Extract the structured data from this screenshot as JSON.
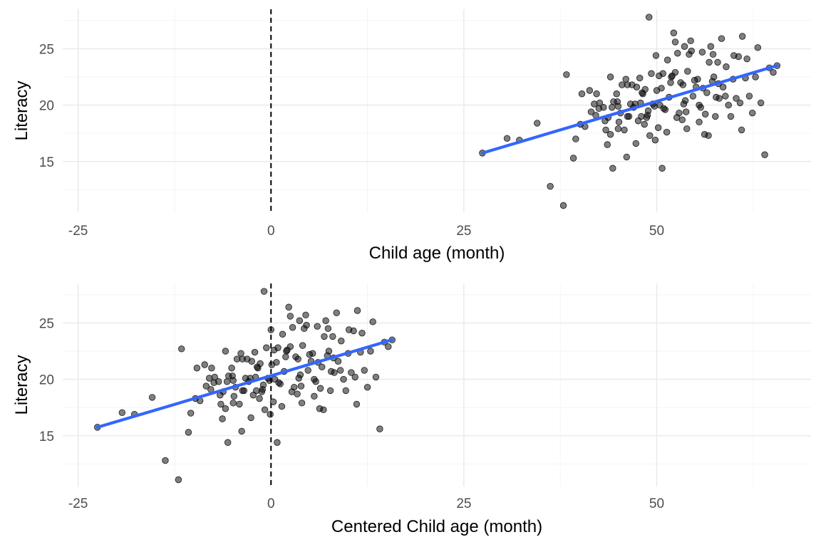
{
  "chart_data": [
    {
      "type": "scatter",
      "xlabel": "Child age (month)",
      "ylabel": "Literacy",
      "xlim": [
        -27,
        70
      ],
      "ylim": [
        10.5,
        28.5
      ],
      "xticks": [
        -25,
        0,
        25,
        50
      ],
      "yticks": [
        15,
        20,
        25
      ],
      "xtick_labels": [
        "-25",
        "0",
        "25",
        "50"
      ],
      "ytick_labels": [
        "15",
        "20",
        "25"
      ],
      "grid": true,
      "reference_line_x": 0,
      "point_color": "#000000",
      "fit_color": "#3366ff",
      "fit_line": {
        "x": [
          27.4,
          65.6
        ],
        "y": [
          15.75,
          23.5
        ]
      },
      "x": [
        27.4,
        30.6,
        32.2,
        34.5,
        36.2,
        37.9,
        38.3,
        39.2,
        39.5,
        40.1,
        40.3,
        40.7,
        41.3,
        41.5,
        41.9,
        42.1,
        42.2,
        42.5,
        42.6,
        43.1,
        43.3,
        43.4,
        43.6,
        43.7,
        44.0,
        44.0,
        44.2,
        44.3,
        44.4,
        44.8,
        45.0,
        45.0,
        45.1,
        45.3,
        45.5,
        45.8,
        46.0,
        46.1,
        46.2,
        46.2,
        46.6,
        46.8,
        47.0,
        47.2,
        47.3,
        47.6,
        47.8,
        47.9,
        48.0,
        48.1,
        48.4,
        48.5,
        48.7,
        48.8,
        48.9,
        49.1,
        49.3,
        49.5,
        49.7,
        49.8,
        49.9,
        50.0,
        50.3,
        50.4,
        50.6,
        50.7,
        50.8,
        50.9,
        51.1,
        51.3,
        51.4,
        51.6,
        51.8,
        52.0,
        52.2,
        52.4,
        52.4,
        52.6,
        52.7,
        52.9,
        53.1,
        53.3,
        53.4,
        53.5,
        53.6,
        53.8,
        53.9,
        54.0,
        54.2,
        54.4,
        54.5,
        54.7,
        54.9,
        55.1,
        55.3,
        55.5,
        55.5,
        55.9,
        56.0,
        56.2,
        56.3,
        56.5,
        56.7,
        56.8,
        57.0,
        57.2,
        57.3,
        57.6,
        57.7,
        57.9,
        58.0,
        58.1,
        58.4,
        58.6,
        58.9,
        59.0,
        59.3,
        59.6,
        59.9,
        60.0,
        60.3,
        60.6,
        60.8,
        61.0,
        61.1,
        61.5,
        61.7,
        62.0,
        62.4,
        62.8,
        63.1,
        63.5,
        64.0,
        64.6,
        65.1,
        65.6,
        44.9,
        47.4,
        49.0,
        50.2,
        51.9,
        53.7,
        55.7,
        57.4,
        46.4,
        48.2
      ],
      "y": [
        15.75,
        17.05,
        16.9,
        18.4,
        12.8,
        11.1,
        22.7,
        15.3,
        17.0,
        18.3,
        21.0,
        18.1,
        21.3,
        19.4,
        20.1,
        19.1,
        21.0,
        19.7,
        20.2,
        19.8,
        18.6,
        17.8,
        16.5,
        18.9,
        17.4,
        22.5,
        19.8,
        14.4,
        20.3,
        21.0,
        17.9,
        19.9,
        18.5,
        19.3,
        21.8,
        17.8,
        22.3,
        15.4,
        21.8,
        19.0,
        20.1,
        21.8,
        19.8,
        20.1,
        16.6,
        18.6,
        22.4,
        20.2,
        19.0,
        21.1,
        18.3,
        21.4,
        18.9,
        19.1,
        19.5,
        17.3,
        22.8,
        20.1,
        19.9,
        16.9,
        24.4,
        21.3,
        22.6,
        20.0,
        21.5,
        14.4,
        22.8,
        19.7,
        19.6,
        17.6,
        24.0,
        20.7,
        22.0,
        22.6,
        26.4,
        22.9,
        25.6,
        18.9,
        24.6,
        19.3,
        22.0,
        18.7,
        21.8,
        20.1,
        25.2,
        19.4,
        17.9,
        23.0,
        24.5,
        25.7,
        24.8,
        20.8,
        22.2,
        21.6,
        22.3,
        20.0,
        18.5,
        24.7,
        21.5,
        17.4,
        19.2,
        21.1,
        17.3,
        23.8,
        25.2,
        22.1,
        24.5,
        19.0,
        20.7,
        23.8,
        21.9,
        20.6,
        25.9,
        21.6,
        20.8,
        23.4,
        20.0,
        19.0,
        22.3,
        24.4,
        20.6,
        24.3,
        20.2,
        17.8,
        26.1,
        22.4,
        24.1,
        20.8,
        19.3,
        22.5,
        25.1,
        20.2,
        15.6,
        23.3,
        22.9,
        23.5,
        20.3,
        21.6,
        27.8,
        18.0,
        22.5,
        20.4,
        19.8,
        22.5,
        19.0,
        21.0
      ]
    },
    {
      "type": "scatter",
      "xlabel": "Centered Child age (month)",
      "ylabel": "Literacy",
      "xlim": [
        -27,
        70
      ],
      "ylim": [
        10.5,
        28.5
      ],
      "xticks": [
        -25,
        0,
        25,
        50
      ],
      "yticks": [
        15,
        20,
        25
      ],
      "xtick_labels": [
        "-25",
        "0",
        "25",
        "50"
      ],
      "ytick_labels": [
        "15",
        "20",
        "25"
      ],
      "grid": true,
      "reference_line_x": 0,
      "x_offset_from_top_panel": -49.9,
      "point_color": "#000000",
      "fit_color": "#3366ff",
      "fit_line": {
        "x": [
          -22.5,
          15.7
        ],
        "y": [
          15.75,
          23.5
        ]
      }
    }
  ]
}
